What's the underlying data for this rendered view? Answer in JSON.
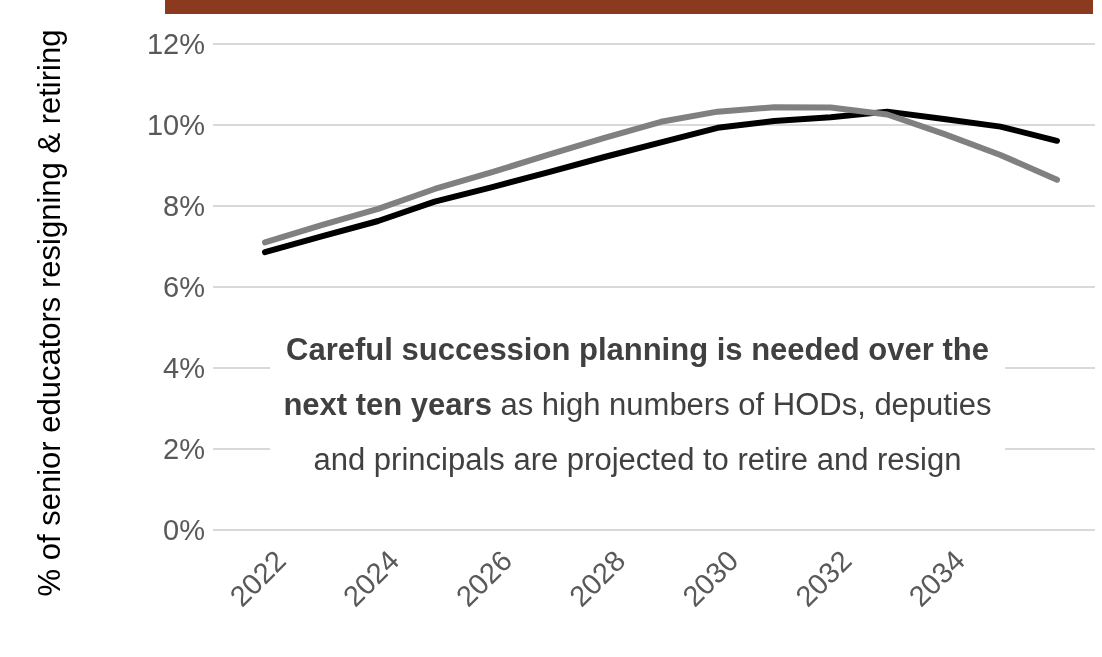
{
  "chart_data": {
    "type": "line",
    "ylabel": "% of senior educators resigning & retiring",
    "categories": [
      "2022",
      null,
      "2024",
      null,
      "2026",
      null,
      "2028",
      null,
      "2030",
      null,
      "2032",
      null,
      "2034",
      null,
      null
    ],
    "series": [
      {
        "color": "#000000",
        "values": [
          6.86,
          7.25,
          7.63,
          8.11,
          8.46,
          8.83,
          9.21,
          9.57,
          9.93,
          10.1,
          10.19,
          10.33,
          10.15,
          9.96,
          9.61
        ]
      },
      {
        "color": "#808080",
        "values": [
          7.1,
          7.53,
          7.93,
          8.42,
          8.83,
          9.26,
          9.68,
          10.08,
          10.33,
          10.44,
          10.43,
          10.26,
          9.78,
          9.26,
          8.65
        ]
      }
    ],
    "ylim": [
      0,
      12
    ],
    "yticks": [
      {
        "value": 0,
        "label": "0%"
      },
      {
        "value": 2,
        "label": "2%"
      },
      {
        "value": 4,
        "label": "4%"
      },
      {
        "value": 6,
        "label": "6%"
      },
      {
        "value": 8,
        "label": "8%"
      },
      {
        "value": 10,
        "label": "10%"
      },
      {
        "value": 12,
        "label": "12%"
      }
    ],
    "grid": "y",
    "legend": false,
    "marker": "none",
    "line_style": "solid",
    "annotations": [
      "Careful succession planning is needed over the next ten years",
      "as high numbers of HODs, deputies and principals are projected to retire and resign"
    ]
  }
}
